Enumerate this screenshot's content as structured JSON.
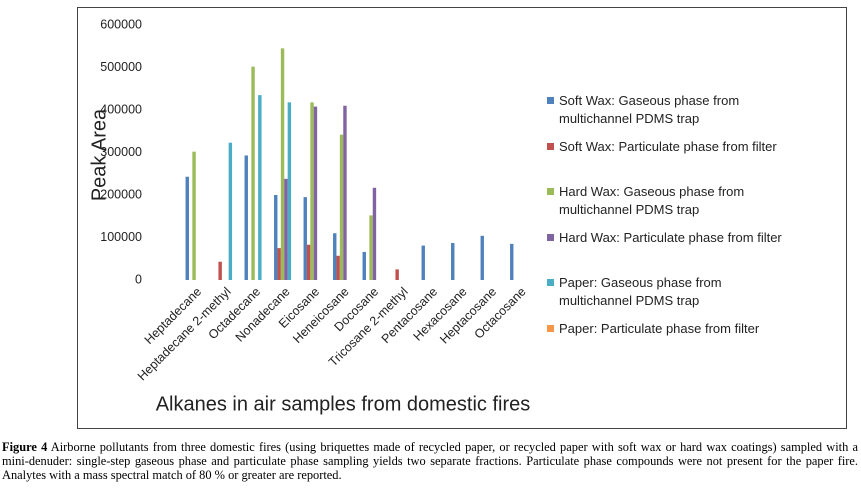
{
  "chart_data": {
    "type": "bar",
    "ylabel": "Peak Area",
    "xlabel": "Alkanes in air samples from domestic fires",
    "categories": [
      "Heptadecane",
      "Heptadecane 2-methyl",
      "Octadecane",
      "Nonadecane",
      "Eicosane",
      "Heneicosane",
      "Docosane",
      "Tricosane 2-methyl",
      "Pentacosane",
      "Hexacosane",
      "Heptacosane",
      "Octacosane"
    ],
    "series": [
      {
        "name": "Soft Wax: Gaseous phase from multichannel PDMS trap",
        "color": "#4f81bd",
        "values": [
          243000,
          0,
          293000,
          200000,
          195000,
          110000,
          66000,
          0,
          81000,
          87000,
          104000,
          85000
        ]
      },
      {
        "name": "Soft Wax: Particulate phase from filter",
        "color": "#c0504d",
        "values": [
          0,
          43000,
          0,
          75000,
          83000,
          57000,
          0,
          25000,
          0,
          0,
          0,
          0
        ]
      },
      {
        "name": "Hard Wax: Gaseous phase from multichannel PDMS trap",
        "color": "#9bbb59",
        "values": [
          302000,
          0,
          502000,
          545000,
          418000,
          342000,
          152000,
          0,
          0,
          0,
          0,
          0
        ]
      },
      {
        "name": "Hard Wax: Particulate phase from filter",
        "color": "#8064a2",
        "values": [
          0,
          0,
          0,
          238000,
          408000,
          410000,
          217000,
          0,
          0,
          0,
          0,
          0
        ]
      },
      {
        "name": "Paper: Gaseous phase from multichannel PDMS trap",
        "color": "#4bacc6",
        "values": [
          0,
          323000,
          435000,
          418000,
          0,
          0,
          0,
          0,
          0,
          0,
          0,
          0
        ]
      },
      {
        "name": "Paper: Particulate phase from filter",
        "color": "#f79646",
        "values": [
          0,
          0,
          0,
          0,
          0,
          0,
          0,
          0,
          0,
          0,
          0,
          0
        ]
      }
    ],
    "ylim": [
      0,
      600000
    ],
    "yticks": [
      0,
      100000,
      200000,
      300000,
      400000,
      500000,
      600000
    ],
    "grid": false,
    "legend": "right"
  },
  "caption": {
    "label": "Figure 4",
    "text": "Airborne pollutants from three domestic fires (using briquettes made of recycled paper, or recycled paper with soft wax or hard wax coatings) sampled with a mini-denuder: single-step gaseous phase and particulate phase sampling yields two separate fractions. Particulate phase compounds were not present for the paper fire. Analytes with a mass spectral match of 80 % or greater are reported."
  }
}
